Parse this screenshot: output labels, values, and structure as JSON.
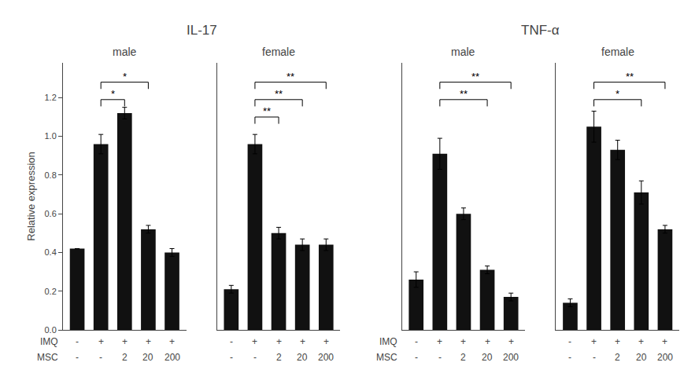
{
  "chart_data": [
    {
      "type": "bar",
      "title": "IL-17",
      "ylabel": "Relative expression",
      "color": "#111111",
      "ylim": [
        0,
        1.38
      ],
      "yticks": [
        {
          "value": 0,
          "label": "0.0"
        },
        0.2,
        0.4,
        0.6,
        0.8,
        {
          "value": 1.0,
          "label": "1.0"
        },
        1.2
      ],
      "grid": false,
      "category_rows": [
        {
          "label": "IMQ",
          "values": [
            "-",
            "+",
            "+",
            "+",
            "+"
          ]
        },
        {
          "label": "MSC",
          "values": [
            "-",
            "-",
            "2",
            "20",
            "200"
          ]
        }
      ],
      "panels": [
        {
          "title": "male",
          "values": [
            0.42,
            0.96,
            1.12,
            0.52,
            0.4
          ],
          "errors": [
            0.0,
            0.05,
            0.03,
            0.02,
            0.02
          ],
          "tick_labels": "y",
          "annotations": [
            {
              "from": 1,
              "to": 3,
              "y": 1.28,
              "text": "*"
            },
            {
              "from": 1,
              "to": 2,
              "y": 1.19,
              "text": "*"
            }
          ]
        },
        {
          "title": "female",
          "values": [
            0.21,
            0.96,
            0.5,
            0.44,
            0.44
          ],
          "errors": [
            0.02,
            0.05,
            0.03,
            0.03,
            0.03
          ],
          "tick_labels": false,
          "annotations": [
            {
              "from": 1,
              "to": 4,
              "y": 1.28,
              "text": "**"
            },
            {
              "from": 1,
              "to": 3,
              "y": 1.19,
              "text": "**"
            },
            {
              "from": 1,
              "to": 2,
              "y": 1.1,
              "text": "**"
            }
          ]
        }
      ]
    },
    {
      "type": "bar",
      "title": "TNF-α",
      "color": "#111111",
      "ylim": [
        0,
        1.38
      ],
      "yticks": [
        {
          "value": 0,
          "label": "0.0"
        },
        0.2,
        0.4,
        0.6,
        0.8,
        {
          "value": 1.0,
          "label": "1.0"
        },
        1.2
      ],
      "grid": false,
      "category_rows": [
        {
          "label": "IMQ",
          "values": [
            "-",
            "+",
            "+",
            "+",
            "+"
          ]
        },
        {
          "label": "MSC",
          "values": [
            "-",
            "-",
            "2",
            "20",
            "200"
          ]
        }
      ],
      "panels": [
        {
          "title": "male",
          "values": [
            0.26,
            0.91,
            0.6,
            0.31,
            0.17
          ],
          "errors": [
            0.04,
            0.08,
            0.03,
            0.02,
            0.02
          ],
          "tick_labels": false,
          "annotations": [
            {
              "from": 1,
              "to": 4,
              "y": 1.28,
              "text": "**"
            },
            {
              "from": 1,
              "to": 3,
              "y": 1.19,
              "text": "**"
            }
          ]
        },
        {
          "title": "female",
          "values": [
            0.14,
            1.05,
            0.93,
            0.71,
            0.52
          ],
          "errors": [
            0.02,
            0.08,
            0.05,
            0.06,
            0.02
          ],
          "tick_labels": false,
          "annotations": [
            {
              "from": 1,
              "to": 4,
              "y": 1.28,
              "text": "**"
            },
            {
              "from": 1,
              "to": 3,
              "y": 1.19,
              "text": "*"
            }
          ]
        }
      ]
    }
  ]
}
